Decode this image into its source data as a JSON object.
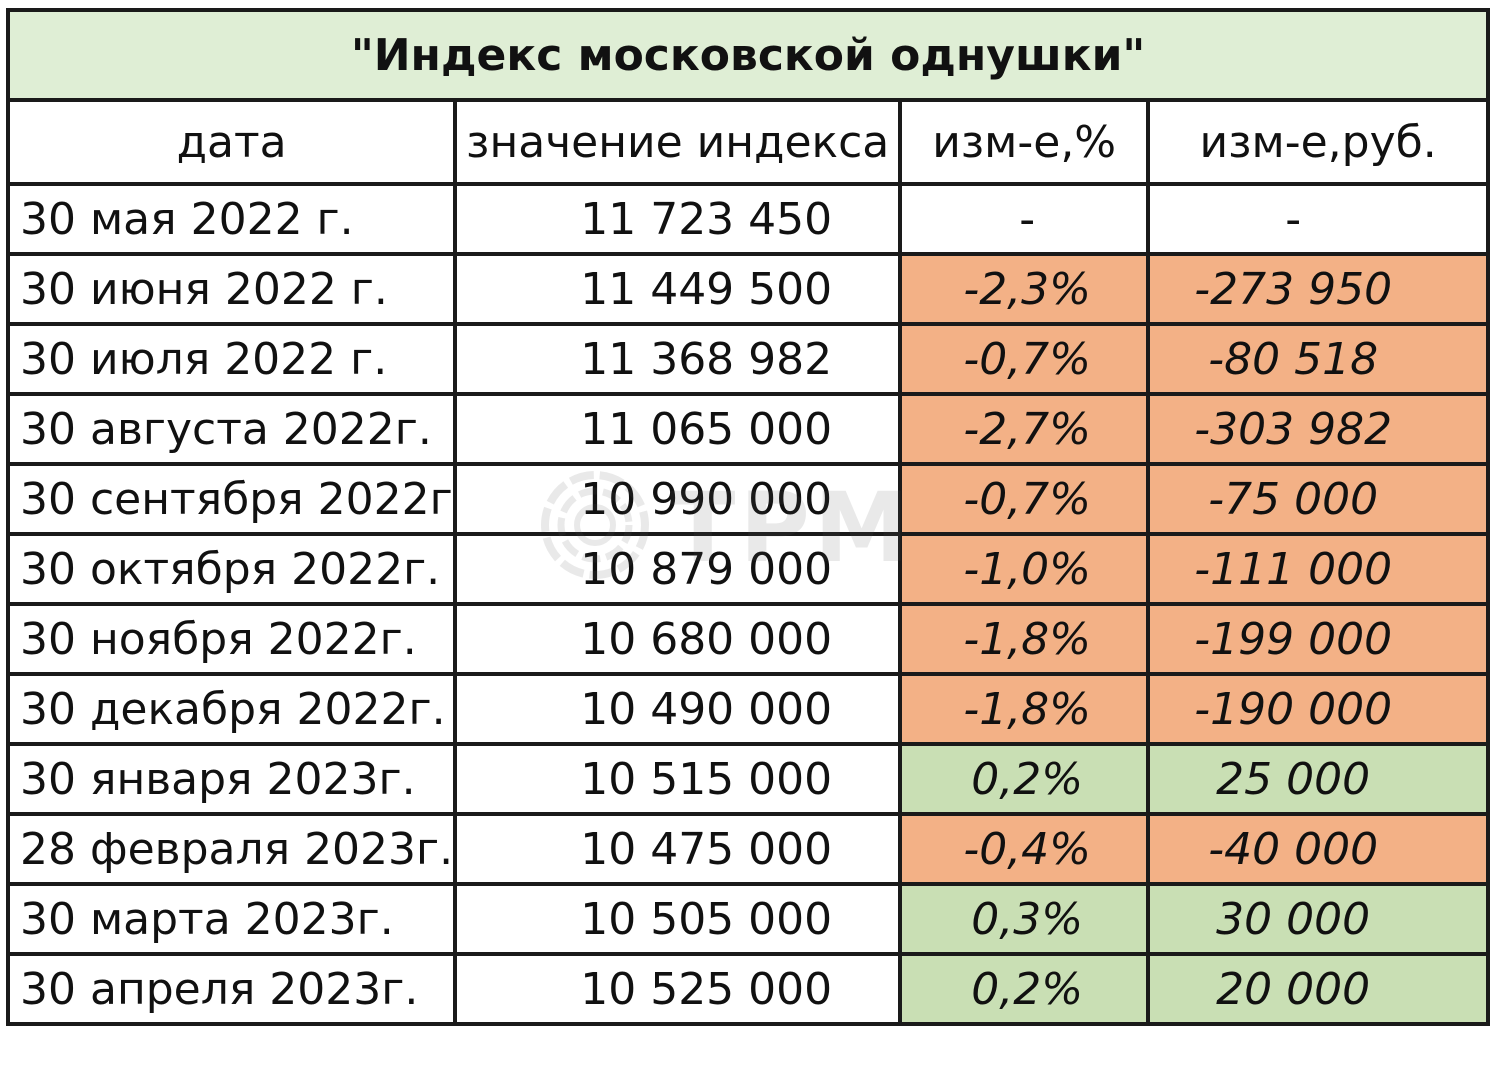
{
  "title": "\"Индекс московской однушки\"",
  "headers": [
    "дата",
    "значение индекса",
    "изм-е,%",
    "изм-е,руб."
  ],
  "rows": [
    {
      "date": "30 мая 2022 г.",
      "value": "11 723 450",
      "pct": "-",
      "rub": "-",
      "trend": "none"
    },
    {
      "date": "30 июня 2022 г.",
      "value": "11 449 500",
      "pct": "-2,3%",
      "rub": "-273 950",
      "trend": "neg"
    },
    {
      "date": "30 июля 2022 г.",
      "value": "11 368 982",
      "pct": "-0,7%",
      "rub": "-80 518",
      "trend": "neg"
    },
    {
      "date": "30 августа 2022г.",
      "value": "11 065 000",
      "pct": "-2,7%",
      "rub": "-303 982",
      "trend": "neg"
    },
    {
      "date": "30 сентября 2022г",
      "value": "10 990 000",
      "pct": "-0,7%",
      "rub": "-75 000",
      "trend": "neg"
    },
    {
      "date": "30 октября 2022г.",
      "value": "10 879 000",
      "pct": "-1,0%",
      "rub": "-111 000",
      "trend": "neg"
    },
    {
      "date": "30 ноября 2022г.",
      "value": "10 680 000",
      "pct": "-1,8%",
      "rub": "-199 000",
      "trend": "neg"
    },
    {
      "date": "30 декабря 2022г.",
      "value": "10 490 000",
      "pct": "-1,8%",
      "rub": "-190 000",
      "trend": "neg"
    },
    {
      "date": "30 января 2023г.",
      "value": "10 515 000",
      "pct": "0,2%",
      "rub": "25 000",
      "trend": "pos"
    },
    {
      "date": "28 февраля 2023г.",
      "value": "10 475 000",
      "pct": "-0,4%",
      "rub": "-40 000",
      "trend": "neg"
    },
    {
      "date": "30 марта 2023г.",
      "value": "10 505 000",
      "pct": "0,3%",
      "rub": "30 000",
      "trend": "pos"
    },
    {
      "date": "30 апреля 2023г.",
      "value": "10 525 000",
      "pct": "0,2%",
      "rub": "20 000",
      "trend": "pos"
    }
  ],
  "colors": {
    "negative_fill": "#f3b186",
    "positive_fill": "#c9dfb4",
    "title_fill": "#dfeed5"
  },
  "watermark": {
    "text": "ТРМ",
    "icon": "globe-logo-icon"
  }
}
